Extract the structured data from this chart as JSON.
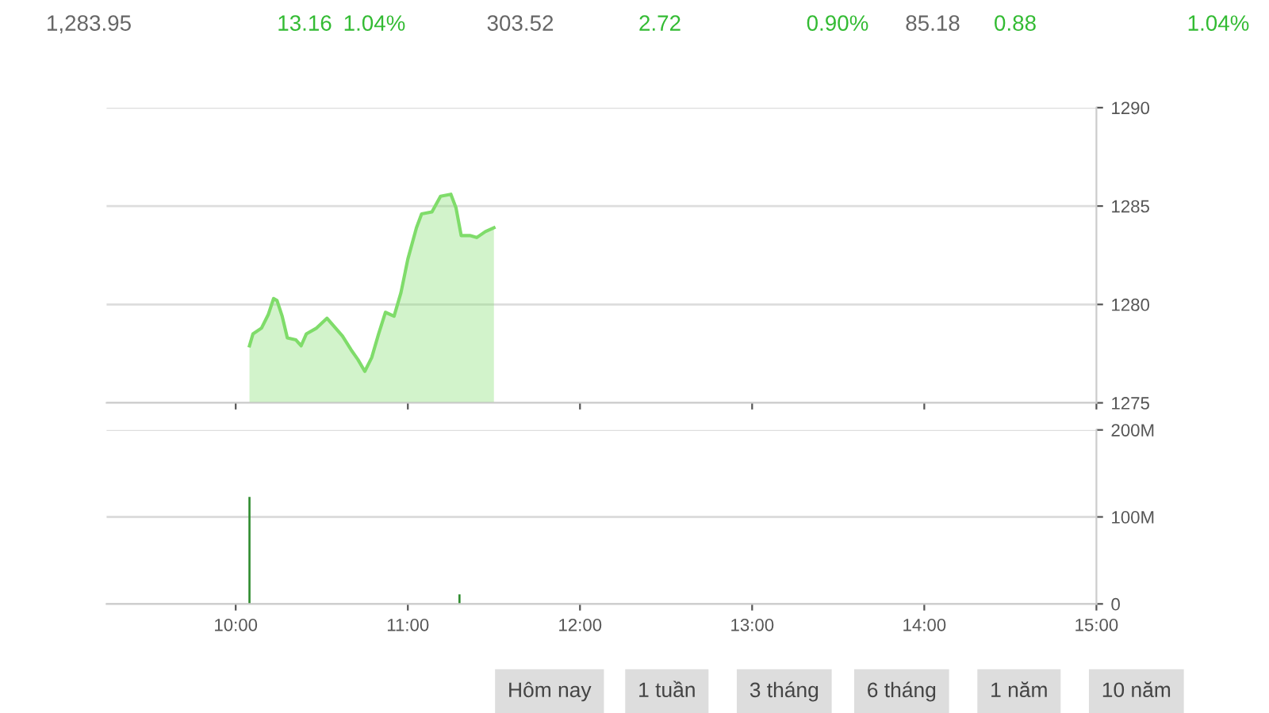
{
  "chart_data": [
    {
      "type": "area",
      "annotations": [
        "1,283.95",
        "13.16",
        "1.04%",
        "303.52",
        "2.72",
        "0.90%",
        "85.18",
        "0.88",
        "1.04%"
      ],
      "series": [
        {
          "color": "#7fdc6a",
          "x": [
            10.08,
            10.1,
            10.15,
            10.19,
            10.22,
            10.24,
            10.27,
            10.3,
            10.35,
            10.38,
            10.41,
            10.47,
            10.53,
            10.58,
            10.62,
            10.67,
            10.71,
            10.75,
            10.79,
            10.83,
            10.87,
            10.92,
            10.96,
            11.0,
            11.05,
            11.08,
            11.14,
            11.19,
            11.25,
            11.28,
            11.31,
            11.36,
            11.4,
            11.45,
            11.5
          ],
          "values": [
            1277.9,
            1278.5,
            1278.8,
            1279.5,
            1280.3,
            1280.2,
            1279.4,
            1278.3,
            1278.2,
            1277.9,
            1278.5,
            1278.8,
            1279.3,
            1278.8,
            1278.4,
            1277.7,
            1277.2,
            1276.6,
            1277.3,
            1278.5,
            1279.6,
            1279.4,
            1280.6,
            1282.3,
            1283.9,
            1284.6,
            1284.7,
            1285.5,
            1285.6,
            1284.9,
            1283.5,
            1283.5,
            1283.4,
            1283.7,
            1283.9
          ]
        }
      ],
      "xlim": [
        9.25,
        15
      ],
      "xticks": [
        10,
        11,
        12,
        13,
        14,
        15
      ],
      "ylim": [
        1275,
        1290
      ],
      "yticks": [
        1275,
        1280,
        1285,
        1290
      ],
      "grid": "y",
      "tick_labels": "y"
    },
    {
      "type": "bar",
      "annotations": [
        "Hôm nay",
        "1 tuần",
        "3 tháng",
        "6 tháng",
        "1 năm",
        "10 năm"
      ],
      "series": [
        {
          "color": "#2e8b2e",
          "x": [
            10.08,
            10.29,
            10.59,
            11.06,
            11.18,
            11.3
          ],
          "values": [
            123,
            null,
            null,
            null,
            null,
            11
          ]
        }
      ],
      "xlim": [
        9.25,
        15
      ],
      "xticks": [
        {
          "value": 10,
          "label": "10:00"
        },
        {
          "value": 11,
          "label": "11:00"
        },
        {
          "value": 12,
          "label": "12:00"
        },
        {
          "value": 13,
          "label": "13:00"
        },
        {
          "value": 14,
          "label": "14:00"
        },
        {
          "value": 15,
          "label": "15:00"
        }
      ],
      "ylim": [
        0,
        200
      ],
      "yticks": [
        0,
        {
          "value": 100,
          "label": "100M"
        },
        {
          "value": 200,
          "label": "200M"
        }
      ],
      "grid": "y"
    }
  ]
}
